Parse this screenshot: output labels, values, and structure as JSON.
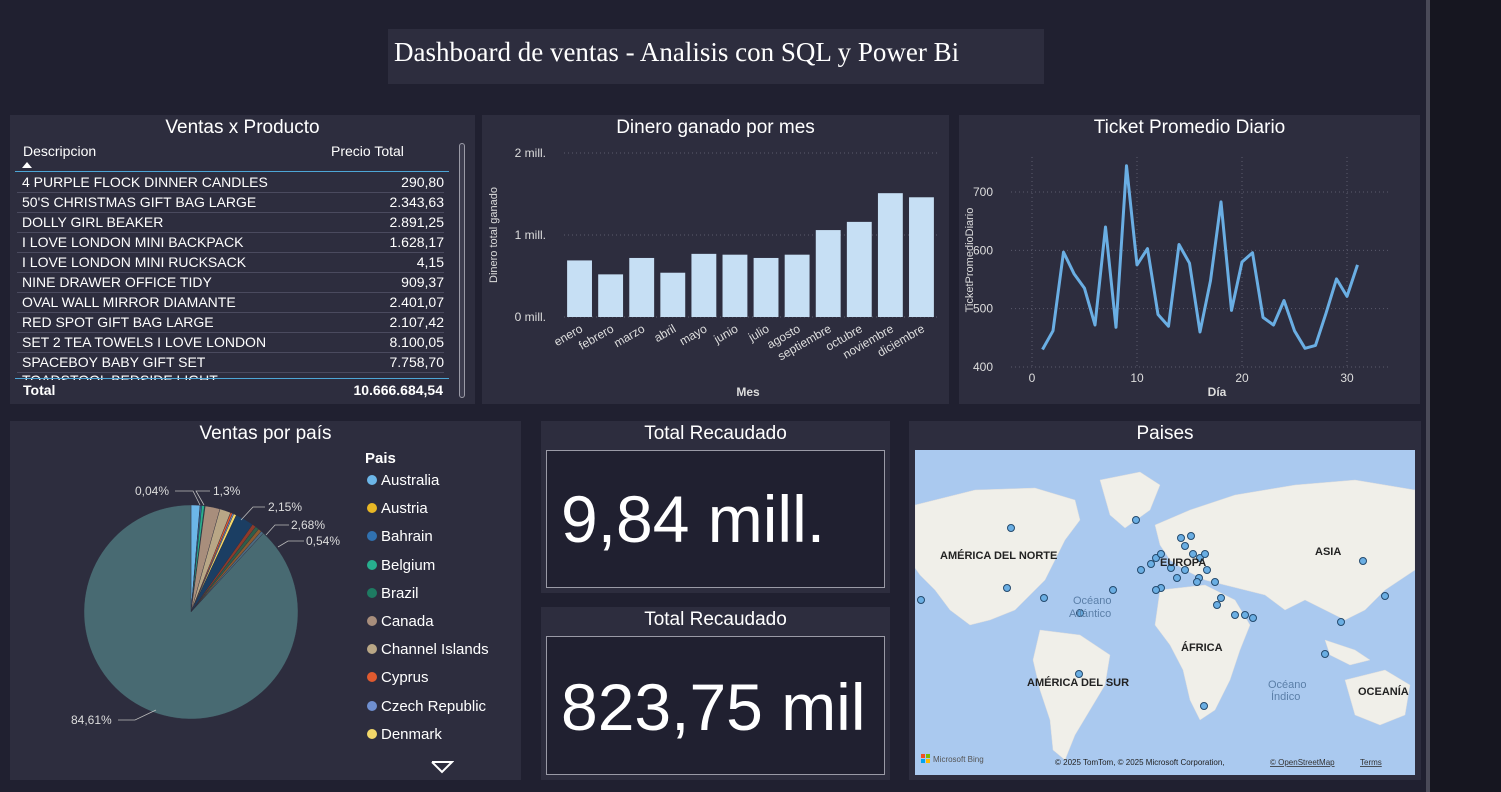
{
  "title": "Dashboard de ventas - Analisis con SQL y Power Bi",
  "product_table": {
    "title": "Ventas x Producto",
    "col_desc": "Descripcion",
    "col_price": "Precio Total",
    "rows": [
      {
        "desc": "4 PURPLE FLOCK DINNER CANDLES",
        "value": "290,80"
      },
      {
        "desc": "50'S CHRISTMAS GIFT BAG LARGE",
        "value": "2.343,63"
      },
      {
        "desc": "DOLLY GIRL BEAKER",
        "value": "2.891,25"
      },
      {
        "desc": "I LOVE LONDON MINI BACKPACK",
        "value": "1.628,17"
      },
      {
        "desc": "I LOVE LONDON MINI RUCKSACK",
        "value": "4,15"
      },
      {
        "desc": "NINE DRAWER OFFICE TIDY",
        "value": "909,37"
      },
      {
        "desc": "OVAL WALL MIRROR DIAMANTE",
        "value": "2.401,07"
      },
      {
        "desc": "RED SPOT GIFT BAG LARGE",
        "value": "2.107,42"
      },
      {
        "desc": "SET 2 TEA TOWELS I LOVE LONDON",
        "value": "8.100,05"
      },
      {
        "desc": "SPACEBOY BABY GIFT SET",
        "value": "7.758,70"
      }
    ],
    "total_label": "Total",
    "total_value": "10.666.684,54"
  },
  "chart_data": [
    {
      "type": "bar",
      "title": "Dinero ganado por mes",
      "xlabel": "Mes",
      "ylabel": "Dinero total ganado",
      "categories": [
        "enero",
        "febrero",
        "marzo",
        "abril",
        "mayo",
        "junio",
        "julio",
        "agosto",
        "septiembre",
        "octubre",
        "noviembre",
        "diciembre"
      ],
      "values": [
        0.69,
        0.52,
        0.72,
        0.54,
        0.77,
        0.76,
        0.72,
        0.76,
        1.06,
        1.16,
        1.51,
        1.46
      ],
      "yticks": [
        {
          "v": 0,
          "label": "0 mill."
        },
        {
          "v": 1,
          "label": "1 mill."
        },
        {
          "v": 2,
          "label": "2 mill."
        }
      ],
      "ylim": [
        0,
        2
      ],
      "color": "#c6dff4",
      "grid": true
    },
    {
      "type": "line",
      "title": "Ticket Promedio Diario",
      "xlabel": "Día",
      "ylabel": "TicketPromedioDiario",
      "x": [
        1,
        2,
        3,
        4,
        5,
        6,
        7,
        8,
        9,
        10,
        11,
        12,
        13,
        14,
        15,
        16,
        17,
        18,
        19,
        20,
        21,
        22,
        23,
        24,
        25,
        26,
        27,
        28,
        29,
        30,
        31
      ],
      "y": [
        430,
        462,
        597,
        560,
        535,
        472,
        640,
        468,
        745,
        575,
        603,
        490,
        470,
        610,
        578,
        460,
        548,
        683,
        497,
        580,
        596,
        485,
        472,
        514,
        462,
        432,
        437,
        492,
        551,
        521,
        575
      ],
      "xticks": [
        0,
        10,
        20,
        30
      ],
      "yticks": [
        400,
        500,
        600,
        700
      ],
      "xlim": [
        -2,
        34
      ],
      "ylim": [
        400,
        760
      ],
      "color": "#6aaee3",
      "grid": true
    },
    {
      "type": "pie",
      "title": "Ventas por país",
      "legend_title": "Pais",
      "legend_position": "right",
      "slices": [
        {
          "label": "Australia",
          "value": 1.3,
          "color": "#6cb6e8"
        },
        {
          "label": "Austria",
          "value": 0.04,
          "color": "#e8b725"
        },
        {
          "label": "Bahrain",
          "value": 0.2,
          "color": "#3071b0"
        },
        {
          "label": "Belgium",
          "value": 0.4,
          "color": "#27ae8e"
        },
        {
          "label": "Brazil",
          "value": 0.1,
          "color": "#1e7b62"
        },
        {
          "label": "Canada",
          "value": 2.15,
          "color": "#a88e7c"
        },
        {
          "label": "Channel Islands",
          "value": 1.6,
          "color": "#b9a786"
        },
        {
          "label": "Cyprus",
          "value": 0.3,
          "color": "#e05a2f"
        },
        {
          "label": "Czech Republic",
          "value": 0.2,
          "color": "#6f8fd0"
        },
        {
          "label": "Denmark",
          "value": 0.4,
          "color": "#f3d86a"
        },
        {
          "label": "",
          "value": 2.68,
          "color": "#1b3e63"
        },
        {
          "label": "",
          "value": 0.54,
          "color": "#8e3a2a"
        },
        {
          "label": "",
          "value": 0.54,
          "color": "#2e5e4a"
        },
        {
          "label": "",
          "value": 0.5,
          "color": "#8a5a30"
        },
        {
          "label": "",
          "value": 0.4,
          "color": "#4c6a80"
        },
        {
          "label": "",
          "value": 84.61,
          "color": "#486a72"
        }
      ],
      "data_labels": [
        "0,04%",
        "1,3%",
        "2,15%",
        "2,68%",
        "0,54%",
        "84,61%"
      ]
    }
  ],
  "kpi1": {
    "title": "Total Recaudado",
    "value": "9,84 mill."
  },
  "kpi2": {
    "title": "Total Recaudado",
    "value": "823,75 mil"
  },
  "map": {
    "title": "Paises",
    "labels": {
      "north_america": "AMÉRICA DEL NORTE",
      "europe": "EUROPA",
      "asia": "ASIA",
      "atlantic": "Océano\nAtlántico",
      "atlantic_1": "Océano",
      "atlantic_2": "Atlántico",
      "africa": "ÁFRICA",
      "south_america": "AMÉRICA DEL SUR",
      "indian_1": "Océano",
      "indian_2": "Índico",
      "oceania": "OCEANÍA"
    },
    "attribution": "© 2025 TomTom, © 2025 Microsoft Corporation,",
    "osm_link": "© OpenStreetMap",
    "terms_link": "Terms",
    "brand": "Microsoft Bing"
  }
}
